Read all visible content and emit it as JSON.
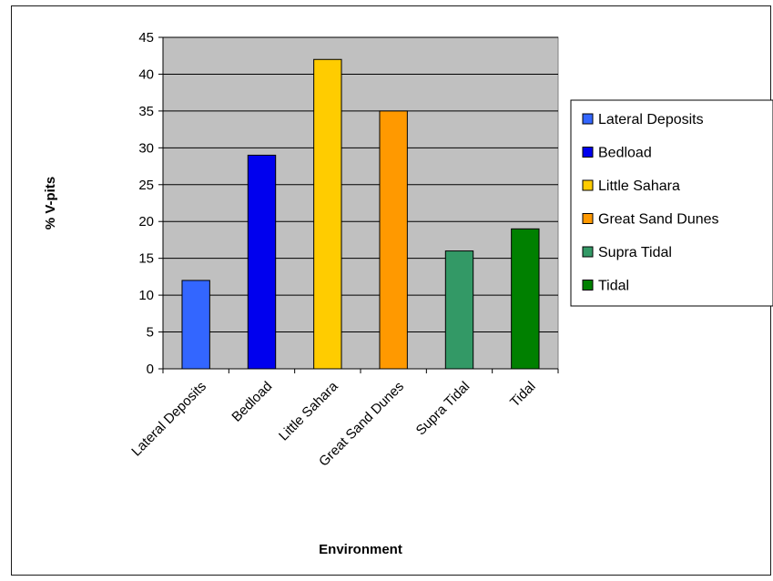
{
  "chart_data": {
    "type": "bar",
    "title": "",
    "xlabel": "Environment",
    "ylabel": "% V-pits",
    "categories": [
      "Lateral Deposits",
      "Bedload",
      "Little Sahara",
      "Great Sand Dunes",
      "Supra Tidal",
      "Tidal"
    ],
    "values": [
      12,
      29,
      42,
      35,
      16,
      19
    ],
    "ylim": [
      0,
      45
    ],
    "yticks": [
      "0",
      "5",
      "10",
      "15",
      "20",
      "25",
      "30",
      "35",
      "40",
      "45"
    ],
    "grid": "horizontal",
    "plot_background": "#c0c0c0",
    "legend": {
      "placement": "right",
      "entries": [
        "Lateral Deposits",
        "Bedload",
        "Little Sahara",
        "Great Sand Dunes",
        "Supra Tidal",
        "Tidal"
      ]
    },
    "colors": [
      "#3366ff",
      "#0000ee",
      "#ffcc00",
      "#ff9900",
      "#339966",
      "#008000"
    ]
  }
}
